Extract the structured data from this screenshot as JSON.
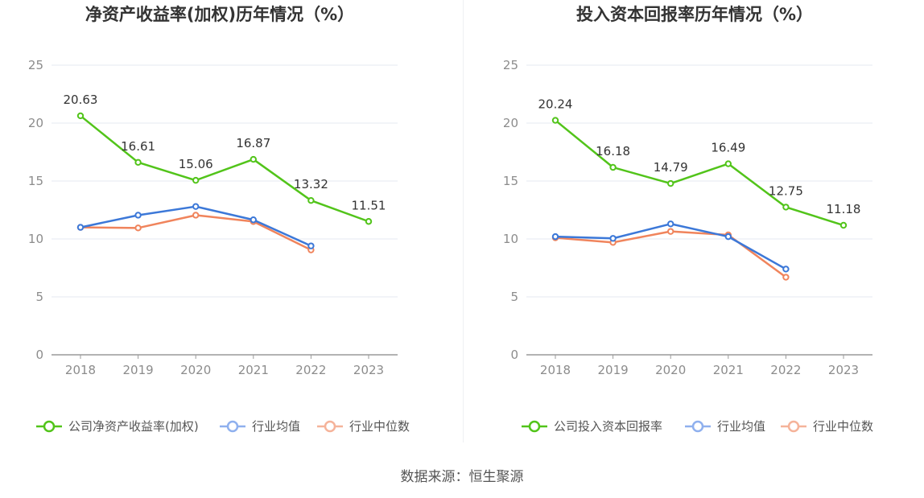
{
  "source": "数据来源：恒生聚源",
  "chart_data": [
    {
      "type": "line",
      "title": "净资产收益率(加权)历年情况（%）",
      "x": [
        "2018",
        "2019",
        "2020",
        "2021",
        "2022",
        "2023"
      ],
      "yticks": [
        "0",
        "5",
        "10",
        "15",
        "20",
        "25"
      ],
      "ylim": [
        0,
        25
      ],
      "grid": true,
      "legend_position": "bottom",
      "series": [
        {
          "name": "公司净资产收益率(加权)",
          "color": "#52c41a",
          "values": [
            20.63,
            16.61,
            15.06,
            16.87,
            13.32,
            11.51
          ],
          "labels": [
            "20.63",
            "16.61",
            "15.06",
            "16.87",
            "13.32",
            "11.51"
          ]
        },
        {
          "name": "行业均值",
          "color": "#3c78d8",
          "values": [
            11.0,
            12.05,
            12.8,
            11.65,
            9.4,
            null
          ]
        },
        {
          "name": "行业中位数",
          "color": "#f0845c",
          "values": [
            11.0,
            10.95,
            12.05,
            11.5,
            9.05,
            null
          ]
        }
      ]
    },
    {
      "type": "line",
      "title": "投入资本回报率历年情况（%）",
      "x": [
        "2018",
        "2019",
        "2020",
        "2021",
        "2022",
        "2023"
      ],
      "yticks": [
        "0",
        "5",
        "10",
        "15",
        "20",
        "25"
      ],
      "ylim": [
        0,
        25
      ],
      "grid": true,
      "legend_position": "bottom",
      "series": [
        {
          "name": "公司投入资本回报率",
          "color": "#52c41a",
          "values": [
            20.24,
            16.18,
            14.79,
            16.49,
            12.75,
            11.18
          ],
          "labels": [
            "20.24",
            "16.18",
            "14.79",
            "16.49",
            "12.75",
            "11.18"
          ]
        },
        {
          "name": "行业均值",
          "color": "#3c78d8",
          "values": [
            10.2,
            10.05,
            11.3,
            10.2,
            7.4,
            null
          ]
        },
        {
          "name": "行业中位数",
          "color": "#f0845c",
          "values": [
            10.1,
            9.7,
            10.65,
            10.35,
            6.7,
            null
          ]
        }
      ]
    }
  ]
}
